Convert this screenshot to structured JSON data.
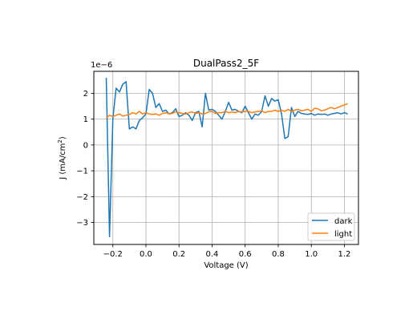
{
  "chart_data": {
    "type": "line",
    "title": "DualPass2_5F",
    "xlabel": "Voltage (V)",
    "ylabel_prefix": "J (mA/cm",
    "ylabel_sup": "2",
    "ylabel_suffix": ")",
    "offset_text": "1e−6",
    "xlim": [
      -0.315,
      1.285
    ],
    "ylim": [
      -3.85,
      2.85
    ],
    "grid": true,
    "legend_position": "lower right",
    "xticks": [
      -0.2,
      0.0,
      0.2,
      0.4,
      0.6,
      0.8,
      1.0,
      1.2
    ],
    "xtick_labels": [
      "−0.2",
      "0.0",
      "0.2",
      "0.4",
      "0.6",
      "0.8",
      "1.0",
      "1.2"
    ],
    "yticks": [
      -3,
      -2,
      -1,
      0,
      1,
      2
    ],
    "ytick_labels": [
      "−3",
      "−2",
      "−1",
      "0",
      "1",
      "2"
    ],
    "x": [
      -0.24,
      -0.22,
      -0.2,
      -0.18,
      -0.16,
      -0.14,
      -0.12,
      -0.1,
      -0.08,
      -0.06,
      -0.04,
      -0.02,
      0.0,
      0.02,
      0.04,
      0.06,
      0.08,
      0.1,
      0.12,
      0.14,
      0.16,
      0.18,
      0.2,
      0.22,
      0.24,
      0.26,
      0.28,
      0.3,
      0.32,
      0.34,
      0.36,
      0.38,
      0.4,
      0.42,
      0.44,
      0.46,
      0.48,
      0.5,
      0.52,
      0.54,
      0.56,
      0.58,
      0.6,
      0.62,
      0.64,
      0.66,
      0.68,
      0.7,
      0.72,
      0.74,
      0.76,
      0.78,
      0.8,
      0.82,
      0.84,
      0.86,
      0.88,
      0.9,
      0.92,
      0.94,
      0.96,
      0.98,
      1.0,
      1.02,
      1.04,
      1.06,
      1.08,
      1.1,
      1.12,
      1.14,
      1.16,
      1.18,
      1.2,
      1.22
    ],
    "series": [
      {
        "name": "dark",
        "color": "#1f77b4",
        "values": [
          2.6,
          -3.55,
          1.0,
          2.2,
          2.05,
          2.35,
          2.45,
          0.62,
          0.7,
          0.62,
          0.95,
          1.05,
          1.2,
          2.15,
          2.0,
          1.45,
          1.6,
          1.3,
          1.35,
          1.2,
          1.25,
          1.4,
          1.1,
          1.15,
          1.25,
          1.15,
          0.95,
          1.25,
          1.3,
          0.7,
          2.0,
          1.35,
          1.38,
          1.3,
          1.15,
          1.0,
          1.3,
          1.65,
          1.35,
          1.38,
          1.3,
          1.25,
          1.5,
          1.25,
          1.0,
          1.2,
          1.15,
          1.3,
          1.9,
          1.5,
          1.8,
          1.7,
          1.75,
          1.2,
          0.25,
          0.32,
          1.45,
          1.1,
          1.3,
          1.22,
          1.2,
          1.18,
          1.22,
          1.15,
          1.2,
          1.18,
          1.2,
          1.15,
          1.2,
          1.22,
          1.25,
          1.2,
          1.25,
          1.2
        ],
        "x_override": [
          -0.24,
          -0.22,
          -0.2,
          -0.18,
          -0.16,
          -0.14,
          -0.12,
          -0.1,
          -0.08,
          -0.06,
          -0.04,
          -0.02,
          0.0,
          0.02,
          0.04,
          0.06,
          0.08,
          0.1,
          0.12,
          0.14,
          0.16,
          0.18,
          0.2,
          0.22,
          0.24,
          0.26,
          0.28,
          0.3,
          0.32,
          0.34,
          0.36,
          0.38,
          0.4,
          0.42,
          0.44,
          0.46,
          0.48,
          0.5,
          0.52,
          0.54,
          0.56,
          0.58,
          0.6,
          0.62,
          0.64,
          0.66,
          0.68,
          0.7,
          0.72,
          0.74,
          0.76,
          0.78,
          0.8,
          0.82,
          0.84,
          0.86,
          0.88,
          0.9,
          0.92,
          0.94,
          0.96,
          0.98,
          1.0,
          1.02,
          1.04,
          1.06,
          1.08,
          1.1,
          1.12,
          1.14,
          1.16,
          1.18,
          1.2,
          1.22
        ]
      },
      {
        "name": "light",
        "color": "#ff7f0e",
        "values": [
          1.05,
          1.15,
          1.1,
          1.15,
          1.2,
          1.12,
          1.15,
          1.18,
          1.25,
          1.2,
          1.3,
          1.2,
          1.25,
          1.2,
          1.18,
          1.2,
          1.15,
          1.22,
          1.25,
          1.2,
          1.22,
          1.28,
          1.25,
          1.22,
          1.2,
          1.25,
          1.28,
          1.22,
          1.25,
          1.2,
          1.22,
          1.28,
          1.3,
          1.22,
          1.25,
          1.25,
          1.3,
          1.25,
          1.28,
          1.25,
          1.3,
          1.28,
          1.3,
          1.3,
          1.25,
          1.28,
          1.3,
          1.32,
          1.25,
          1.3,
          1.3,
          1.35,
          1.3,
          1.35,
          1.3,
          1.38,
          1.3,
          1.35,
          1.38,
          1.32,
          1.35,
          1.38,
          1.3,
          1.42,
          1.4,
          1.32,
          1.35,
          1.4,
          1.45,
          1.4,
          1.45,
          1.5,
          1.55,
          1.6
        ]
      }
    ]
  }
}
